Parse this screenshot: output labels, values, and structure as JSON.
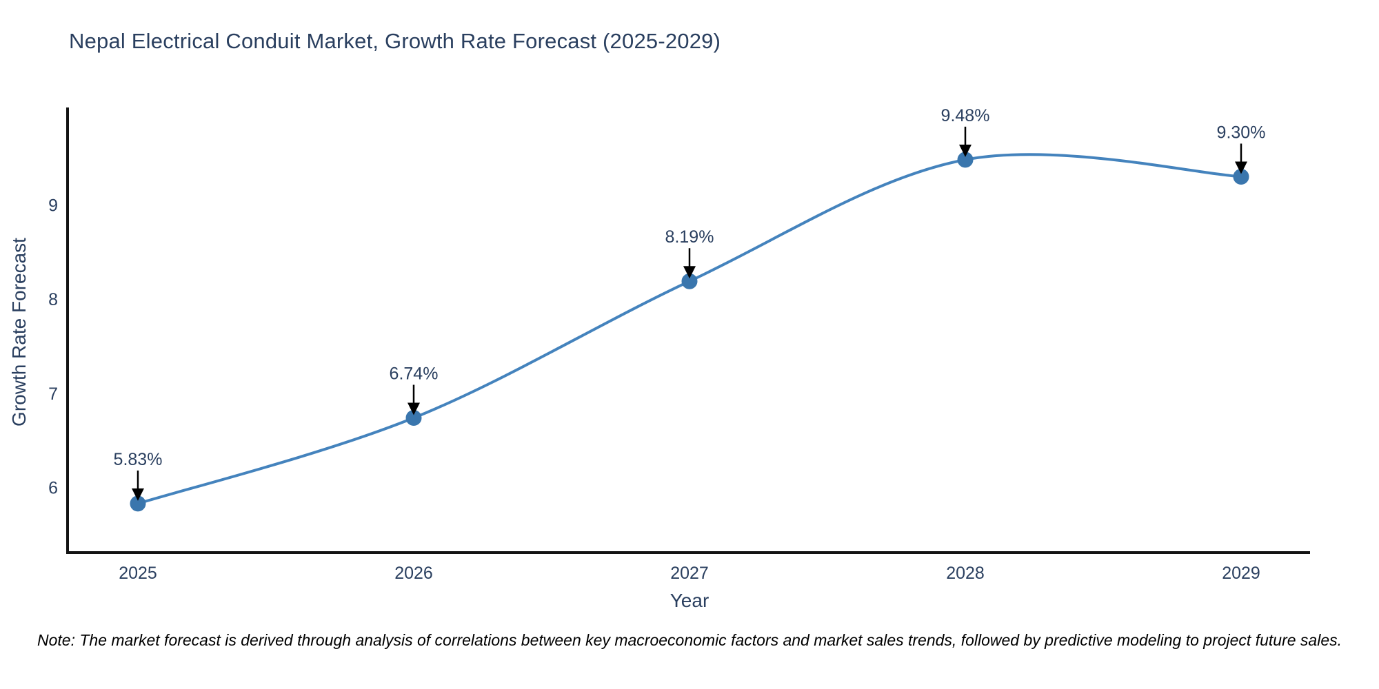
{
  "note": "Note: The market forecast is derived through analysis of correlations between key macroeconomic factors and market sales trends, followed by predictive modeling to project future sales.",
  "chart_data": {
    "type": "line",
    "title": "Nepal Electrical Conduit Market, Growth Rate Forecast (2025-2029)",
    "x": [
      2025,
      2026,
      2027,
      2028,
      2029
    ],
    "values": [
      5.83,
      6.74,
      8.19,
      9.48,
      9.3
    ],
    "point_labels": [
      "5.83%",
      "6.74%",
      "8.19%",
      "9.48%",
      "9.30%"
    ],
    "xlabel": "Year",
    "ylabel": "Growth Rate Forecast",
    "xticklabels": [
      "2025",
      "2026",
      "2027",
      "2028",
      "2029"
    ],
    "yticks": [
      6,
      7,
      8,
      9
    ],
    "ylim": [
      5.31,
      10.02
    ],
    "line_shape": "spline",
    "grid": false,
    "legend": "none",
    "colors": {
      "line": "#4483bd",
      "marker": "#3a76ad",
      "axis": "#131313",
      "text": "#2a3f5f",
      "annotation_arrow": "#000000"
    }
  }
}
